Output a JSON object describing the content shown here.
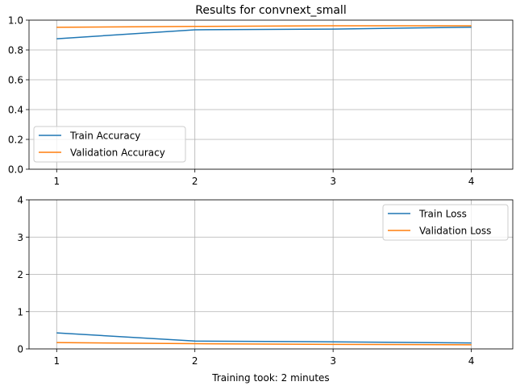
{
  "chart_data": [
    {
      "type": "line",
      "title": "Results for convnext_small",
      "xlabel": "",
      "ylabel": "",
      "x": [
        1,
        2,
        3,
        4
      ],
      "xticks": [
        "1",
        "2",
        "3",
        "4"
      ],
      "yticks": [
        "0.0",
        "0.2",
        "0.4",
        "0.6",
        "0.8",
        "1.0"
      ],
      "ylim": [
        0,
        1
      ],
      "grid": true,
      "legend_position": "lower-left",
      "series": [
        {
          "name": "Train Accuracy",
          "color": "#1f77b4",
          "values": [
            0.875,
            0.935,
            0.94,
            0.953
          ]
        },
        {
          "name": "Validation Accuracy",
          "color": "#ff7f0e",
          "values": [
            0.952,
            0.958,
            0.962,
            0.962
          ]
        }
      ]
    },
    {
      "type": "line",
      "title": "",
      "xlabel": "Training took: 2 minutes",
      "ylabel": "",
      "x": [
        1,
        2,
        3,
        4
      ],
      "xticks": [
        "1",
        "2",
        "3",
        "4"
      ],
      "yticks": [
        "0",
        "1",
        "2",
        "3",
        "4"
      ],
      "ylim": [
        0,
        4
      ],
      "grid": true,
      "legend_position": "upper-right",
      "series": [
        {
          "name": "Train Loss",
          "color": "#1f77b4",
          "values": [
            0.43,
            0.21,
            0.19,
            0.16
          ]
        },
        {
          "name": "Validation Loss",
          "color": "#ff7f0e",
          "values": [
            0.17,
            0.14,
            0.12,
            0.11
          ]
        }
      ]
    }
  ]
}
